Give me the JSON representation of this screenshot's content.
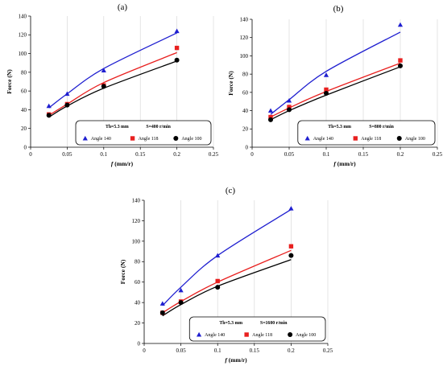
{
  "chart_data": [
    {
      "type": "scatter",
      "panel_label": "(a)",
      "xlabel_var": "f",
      "xlabel_unit": " (mm/r)",
      "ylabel": "Force (N)",
      "xlim": [
        0,
        0.25
      ],
      "ylim": [
        0,
        140
      ],
      "xticks": [
        0,
        0.05,
        0.1,
        0.15,
        0.2,
        0.25
      ],
      "xtick_labels": [
        "0",
        "0.05",
        "0.1",
        "0.15",
        "0.2",
        "0.25"
      ],
      "yticks": [
        0,
        20,
        40,
        60,
        80,
        100,
        120,
        140
      ],
      "legend_title_th": "Th=5.3 mm",
      "legend_title_s": "S=400 r/min",
      "legend_placement": "bottom-right",
      "grid": "vertical",
      "x": [
        0.025,
        0.05,
        0.1,
        0.2
      ],
      "series": [
        {
          "name": "Angle 140",
          "values": [
            44,
            57,
            82,
            124
          ],
          "color": "#1f1fd0",
          "marker": "triangle",
          "fit": [
            42,
            57,
            84,
            122
          ]
        },
        {
          "name": "Angle 118",
          "values": [
            35,
            46,
            66,
            106
          ],
          "color": "#e8201f",
          "marker": "square",
          "fit": [
            34,
            46,
            69,
            101
          ]
        },
        {
          "name": "Angle 100",
          "values": [
            34,
            45,
            65,
            93
          ],
          "color": "#000000",
          "marker": "circle",
          "fit": [
            32,
            44,
            63,
            92
          ]
        }
      ]
    },
    {
      "type": "scatter",
      "panel_label": "(b)",
      "xlabel_var": "f",
      "xlabel_unit": " (mm/r)",
      "ylabel": "Force (N)",
      "xlim": [
        0,
        0.25
      ],
      "ylim": [
        0,
        140
      ],
      "xticks": [
        0,
        0.05,
        0.1,
        0.15,
        0.2,
        0.25
      ],
      "xtick_labels": [
        "0",
        "0.05",
        "0.1",
        "0.15",
        "0.2",
        "0.25"
      ],
      "yticks": [
        0,
        20,
        40,
        60,
        80,
        100,
        120,
        140
      ],
      "legend_title_th": "Th=5.3 mm",
      "legend_title_s": "S=800 r/min",
      "legend_placement": "bottom-right",
      "grid": "vertical",
      "x": [
        0.025,
        0.05,
        0.1,
        0.2
      ],
      "series": [
        {
          "name": "Angle 140",
          "values": [
            40,
            51,
            79,
            134
          ],
          "color": "#1f1fd0",
          "marker": "triangle",
          "fit": [
            36,
            52,
            83,
            126
          ]
        },
        {
          "name": "Angle 118",
          "values": [
            33,
            44,
            63,
            95
          ],
          "color": "#e8201f",
          "marker": "square",
          "fit": [
            33,
            43,
            61,
            92
          ]
        },
        {
          "name": "Angle 100",
          "values": [
            30,
            41,
            59,
            89
          ],
          "color": "#000000",
          "marker": "circle",
          "fit": [
            30,
            40,
            57,
            88
          ]
        }
      ]
    },
    {
      "type": "scatter",
      "panel_label": "(c)",
      "xlabel_var": "f",
      "xlabel_unit": " (mm/r)",
      "ylabel": "Force (N)",
      "xlim": [
        0,
        0.25
      ],
      "ylim": [
        0,
        140
      ],
      "xticks": [
        0,
        0.05,
        0.1,
        0.15,
        0.2,
        0.25
      ],
      "xtick_labels": [
        "0",
        "0.05",
        "0.1",
        "0.15",
        "0.2",
        "0.25"
      ],
      "yticks": [
        0,
        20,
        40,
        60,
        80,
        100,
        120,
        140
      ],
      "legend_title_th": "Th=5.3 mm",
      "legend_title_s": "S=1600 r/min",
      "legend_placement": "bottom-right",
      "grid": "vertical",
      "x": [
        0.025,
        0.05,
        0.1,
        0.2
      ],
      "series": [
        {
          "name": "Angle 140",
          "values": [
            39,
            52,
            86,
            132
          ],
          "color": "#1f1fd0",
          "marker": "triangle",
          "fit": [
            37,
            55,
            86,
            131
          ]
        },
        {
          "name": "Angle 118",
          "values": [
            30,
            41,
            61,
            95
          ],
          "color": "#e8201f",
          "marker": "square",
          "fit": [
            30,
            41,
            60,
            91
          ]
        },
        {
          "name": "Angle 100",
          "values": [
            30,
            40,
            55,
            86
          ],
          "color": "#000000",
          "marker": "circle",
          "fit": [
            27,
            38,
            56,
            82
          ]
        }
      ]
    }
  ]
}
